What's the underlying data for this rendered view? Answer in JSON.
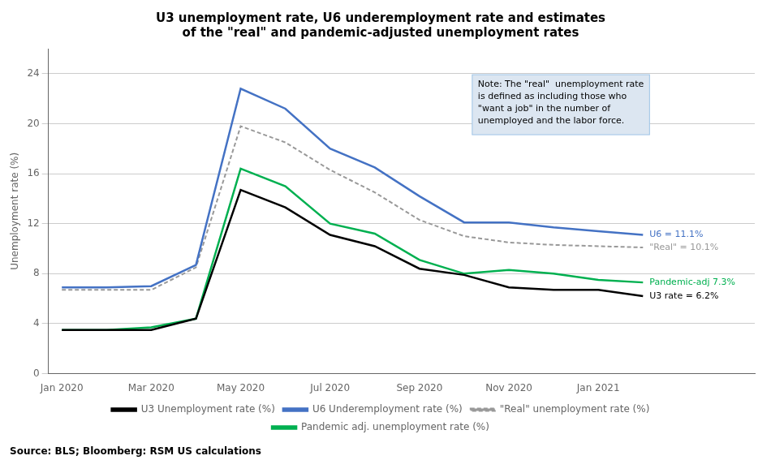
{
  "chart_data": {
    "type": "line",
    "title": "U3 unemployment rate, U6 underemployment rate and estimates\nof the \"real\" and pandemic-adjusted unemployment rates",
    "y_label": "Unemployment rate (%)",
    "source": "Source: BLS; Bloomberg: RSM US calculations",
    "note": "Note: The \"real\"  unemployment rate\nis defined as including those who\n\"want a job\" in the number of\nunemployed and the labor force.",
    "x": [
      0,
      1,
      2,
      3,
      4,
      5,
      6,
      7,
      8,
      9,
      10,
      11,
      12,
      13
    ],
    "series": [
      {
        "name": "U3 Unemployment rate (%)",
        "color": "#000000",
        "line_style": "solid",
        "values": [
          3.5,
          3.5,
          3.5,
          4.4,
          14.7,
          13.3,
          11.1,
          10.2,
          8.4,
          7.9,
          6.9,
          6.7,
          6.7,
          6.2
        ],
        "end_label": "U3 rate = 6.2%"
      },
      {
        "name": "U6 Underemployment rate (%)",
        "color": "#4472C4",
        "line_style": "solid",
        "values": [
          6.9,
          6.9,
          7.0,
          8.7,
          22.8,
          21.2,
          18.0,
          16.5,
          14.2,
          12.1,
          12.1,
          11.7,
          11.4,
          11.1
        ],
        "end_label": "U6 = 11.1%"
      },
      {
        "name": "\"Real\" unemployment rate (%)",
        "color": "#999999",
        "line_style": "dashed",
        "values": [
          6.7,
          6.7,
          6.7,
          8.5,
          19.8,
          18.5,
          16.3,
          14.5,
          12.3,
          11.0,
          10.5,
          10.3,
          10.2,
          10.1
        ],
        "end_label": "\"Real\" = 10.1%"
      },
      {
        "name": "Pandemic adj. unemployment rate (%)",
        "color": "#00B050",
        "line_style": "solid",
        "values": [
          3.5,
          3.5,
          3.7,
          4.4,
          16.4,
          15.0,
          12.0,
          11.2,
          9.1,
          8.0,
          8.3,
          8.0,
          7.5,
          7.3
        ],
        "end_label": "Pandemic-adj 7.3%"
      }
    ],
    "xlim": [
      -0.3,
      15.5
    ],
    "xticks": [
      {
        "value": 0,
        "label": "Jan 2020"
      },
      {
        "value": 2,
        "label": "Mar 2020"
      },
      {
        "value": 4,
        "label": "May 2020"
      },
      {
        "value": 6,
        "label": "Jul 2020"
      },
      {
        "value": 8,
        "label": "Sep 2020"
      },
      {
        "value": 10,
        "label": "Nov 2020"
      },
      {
        "value": 12,
        "label": "Jan 2021"
      }
    ],
    "ylim": [
      0,
      26
    ],
    "yticks": [
      0,
      4,
      8,
      12,
      16,
      20,
      24
    ],
    "grid": "y",
    "legend": "bottom"
  }
}
